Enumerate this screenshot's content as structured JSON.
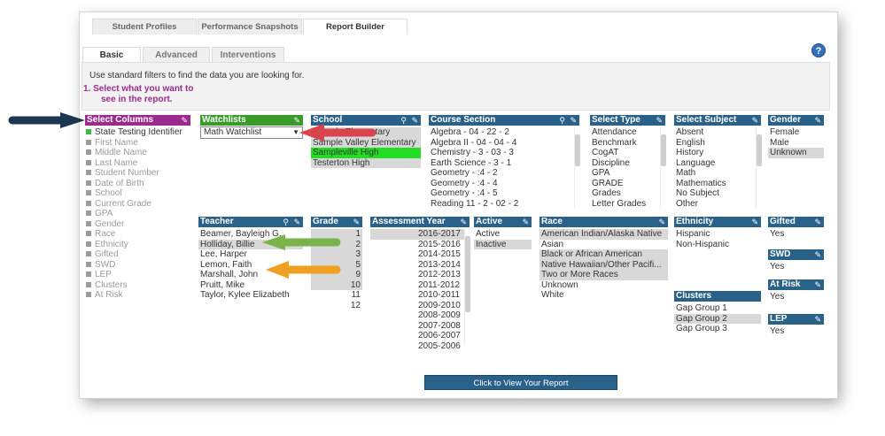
{
  "top_tabs": [
    "Student Profiles",
    "Performance Snapshots",
    "Report Builder"
  ],
  "sub_tabs": [
    "Basic",
    "Advanced",
    "Interventions"
  ],
  "help_label": "?",
  "info_text": "Use standard filters to find the data you are looking for.",
  "step1_line1": "1. Select what you want to",
  "step1_line2": "see in the report.",
  "select_columns": {
    "title": "Select Columns",
    "items": [
      "State Testing Identifier",
      "First Name",
      "Middle Name",
      "Last Name",
      "Student Number",
      "Date of Birth",
      "School",
      "Current Grade",
      "GPA",
      "Gender",
      "Race",
      "Ethnicity",
      "Gifted",
      "SWD",
      "LEP",
      "Clusters",
      "At Risk"
    ]
  },
  "watchlists": {
    "title": "Watchlists",
    "selected": "Math Watchlist"
  },
  "school": {
    "title": "School",
    "items": [
      "Sample Elementary",
      "Sample Valley Elementary",
      "Sampleville High",
      "Testerton High"
    ]
  },
  "course_section": {
    "title": "Course Section",
    "items": [
      "Algebra - 04 - 22 - 2",
      "Algebra II - 04 - 04 - 4",
      "Chemistry - 3 - 03 - 3",
      "Earth Science - 3 - 1",
      "Geometry - :4 - 2",
      "Geometry - :4 - 4",
      "Geometry - :4 - 5",
      "Reading 11 - 2 - 02 - 2"
    ]
  },
  "select_type": {
    "title": "Select Type",
    "items": [
      "Attendance",
      "Benchmark",
      "CogAT",
      "Discipline",
      "GPA",
      "GRADE",
      "Grades",
      "Letter Grades"
    ]
  },
  "select_subject": {
    "title": "Select Subject",
    "items": [
      "Absent",
      "English",
      "History",
      "Language",
      "Math",
      "Mathematics",
      "No Subject",
      "Other"
    ]
  },
  "gender": {
    "title": "Gender",
    "items": [
      "Female",
      "Male",
      "Unknown"
    ]
  },
  "teacher": {
    "title": "Teacher",
    "items": [
      "Beamer, Bayleigh G.",
      "Holliday, Billie",
      "Lee, Harper",
      "Lemon, Faith",
      "Marshall, John",
      "Pruitt, Mike",
      "Taylor, Kylee Elizabeth"
    ]
  },
  "grade": {
    "title": "Grade",
    "items": [
      "1",
      "2",
      "3",
      "5",
      "9",
      "10",
      "11",
      "12"
    ]
  },
  "assessment_year": {
    "title": "Assessment Year",
    "items": [
      "2016-2017",
      "2015-2016",
      "2014-2015",
      "2013-2014",
      "2012-2013",
      "2011-2012",
      "2010-2011",
      "2009-2010",
      "2008-2009",
      "2007-2008",
      "2006-2007",
      "2005-2006"
    ]
  },
  "active": {
    "title": "Active",
    "items": [
      "Active",
      "Inactive"
    ]
  },
  "race": {
    "title": "Race",
    "items": [
      "American Indian/Alaska Native",
      "Asian",
      "Black or African American",
      "Native Hawaiian/Other Pacifi...",
      "Two or More Races",
      "Unknown",
      "White"
    ]
  },
  "ethnicity": {
    "title": "Ethnicity",
    "items": [
      "Hispanic",
      "Non-Hispanic"
    ]
  },
  "gifted": {
    "title": "Gifted",
    "items": [
      "Yes"
    ]
  },
  "swd": {
    "title": "SWD",
    "items": [
      "Yes"
    ]
  },
  "at_risk": {
    "title": "At Risk",
    "items": [
      "Yes"
    ]
  },
  "lep": {
    "title": "LEP",
    "items": [
      "Yes"
    ]
  },
  "clusters": {
    "title": "Clusters",
    "items": [
      "Gap Group 1",
      "Gap Group 2",
      "Gap Group 3"
    ]
  },
  "view_button": "Click to View Your Report",
  "colors": {
    "header_blue": "#2a6189",
    "select_columns_purple": "#9c2b8e",
    "watchlists_green": "#3a9a2a",
    "arrow_navy": "#1c3550",
    "arrow_red": "#d9434e",
    "arrow_green": "#7ab24c",
    "arrow_orange": "#f0a020"
  }
}
